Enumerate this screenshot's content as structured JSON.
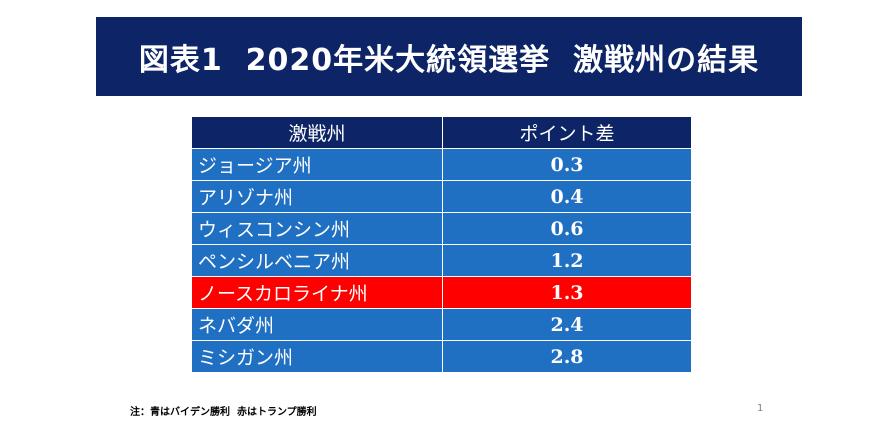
{
  "title": "図表1  2020年米大統領選挙  激戦州の結果",
  "table": {
    "headers": {
      "state": "激戦州",
      "diff": "ポイント差"
    },
    "rows": [
      {
        "state": "ジョージア州",
        "diff": "0.3",
        "winner": "blue"
      },
      {
        "state": "アリゾナ州",
        "diff": "0.4",
        "winner": "blue"
      },
      {
        "state": "ウィスコンシン州",
        "diff": "0.6",
        "winner": "blue"
      },
      {
        "state": "ペンシルベニア州",
        "diff": "1.2",
        "winner": "blue"
      },
      {
        "state": "ノースカロライナ州",
        "diff": "1.3",
        "winner": "red"
      },
      {
        "state": "ネバダ州",
        "diff": "2.4",
        "winner": "blue"
      },
      {
        "state": "ミシガン州",
        "diff": "2.8",
        "winner": "blue"
      }
    ]
  },
  "note": "注：青はバイデン勝利  赤はトランプ勝利",
  "page_number": "1",
  "colors": {
    "title_bg": "#0d2466",
    "header_bg": "#0d2466",
    "biden_blue": "#1f6fc3",
    "trump_red": "#ff0000"
  }
}
